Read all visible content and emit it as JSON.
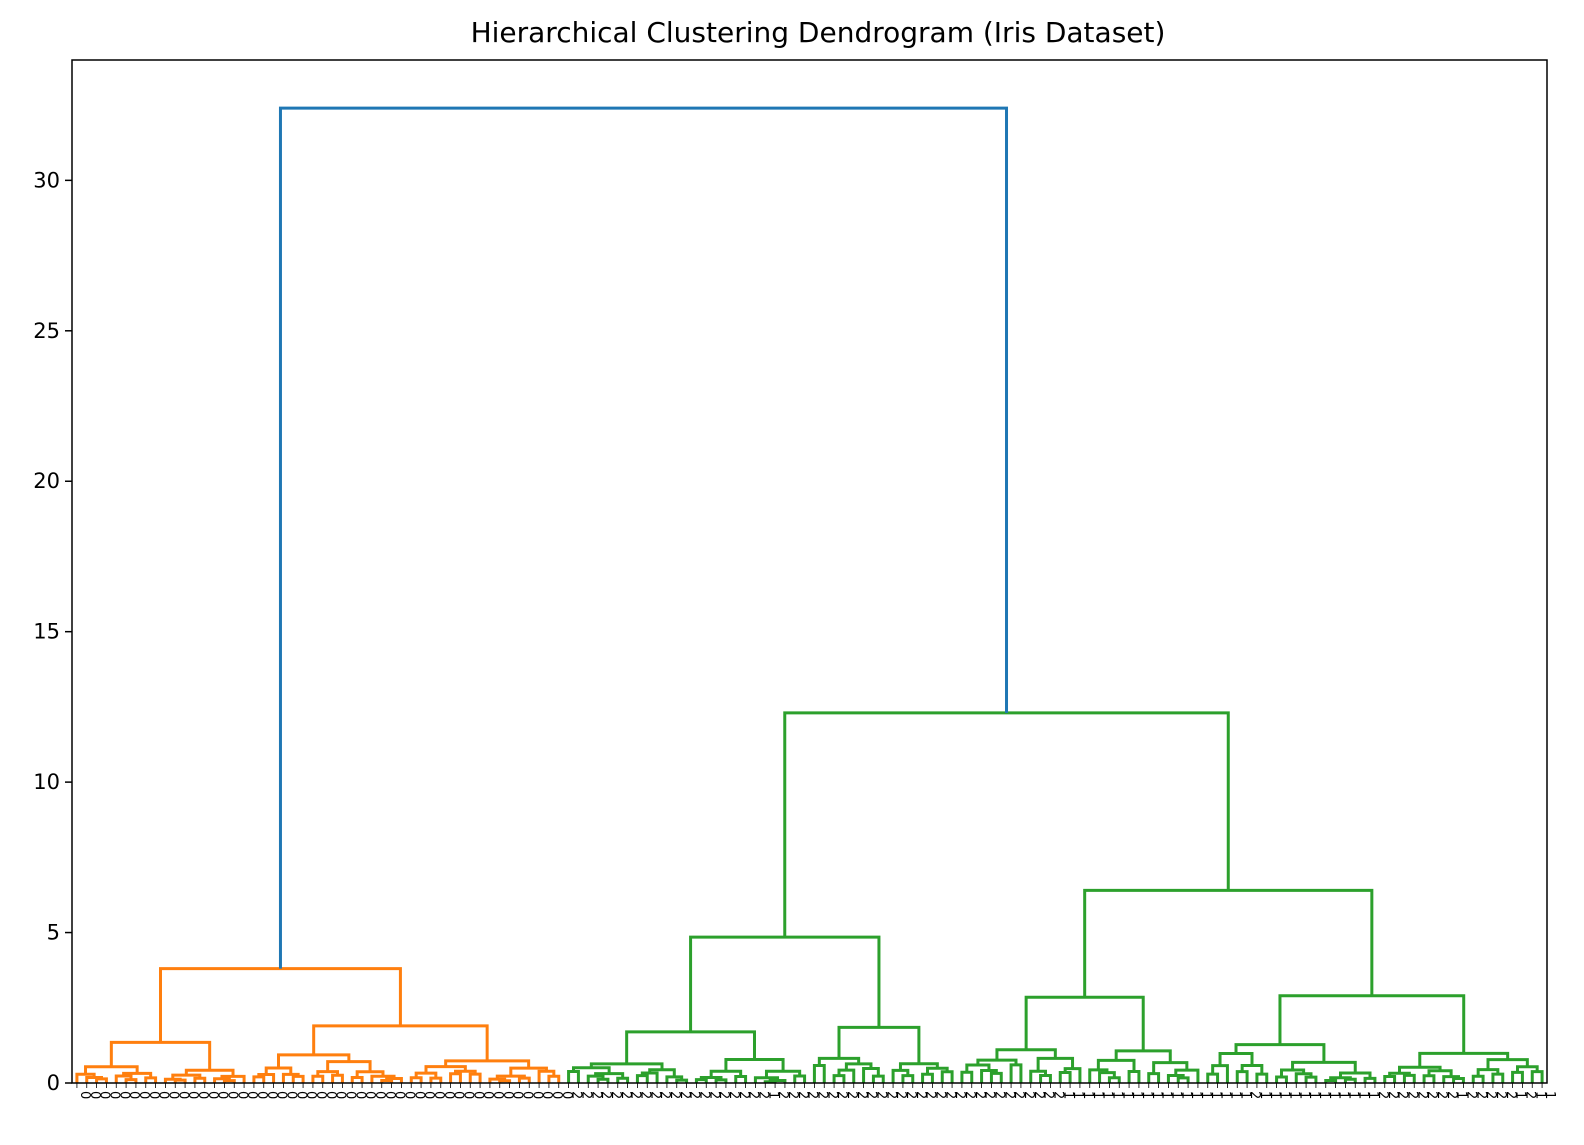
{
  "chart_data": {
    "type": "dendrogram",
    "title": "Hierarchical Clustering Dendrogram (Iris Dataset)",
    "xlabel": "",
    "ylabel": "",
    "ylim": [
      0,
      34
    ],
    "yticks": [
      0,
      5,
      10,
      15,
      20,
      25,
      30
    ],
    "leaf_count": 150,
    "leaf_labels": "000000000000000000000000000000000000000000000000002222222222222222222212222222222222222222222222222211111111111111111112111111111111222222221222221211111111111111111111111212211111",
    "colors": {
      "above_threshold": "#1f77b4",
      "cluster_1": "#ff7f0e",
      "cluster_2": "#2ca02c"
    },
    "merges": [
      {
        "name": "root",
        "height": 32.4,
        "children": [
          "setosa_cluster",
          "right_cluster"
        ],
        "color": "above"
      },
      {
        "name": "setosa_cluster",
        "height": 3.8,
        "children": [
          "setosa_a",
          "setosa_b"
        ],
        "color": "c1"
      },
      {
        "name": "setosa_a",
        "height": 1.35,
        "leaves": [
          0,
          18
        ]
      },
      {
        "name": "setosa_b",
        "height": 1.9,
        "leaves": [
          18,
          50
        ]
      },
      {
        "name": "right_cluster",
        "height": 12.3,
        "children": [
          "cluster_middle",
          "cluster_far"
        ],
        "color": "c2"
      },
      {
        "name": "cluster_middle",
        "height": 4.85,
        "children": [
          "middle_a",
          "middle_b"
        ]
      },
      {
        "name": "middle_a",
        "height": 1.7,
        "leaves": [
          50,
          75
        ]
      },
      {
        "name": "middle_b",
        "height": 1.85,
        "leaves": [
          75,
          90
        ]
      },
      {
        "name": "cluster_far",
        "height": 6.4,
        "children": [
          "far_a",
          "far_b"
        ]
      },
      {
        "name": "far_a",
        "height": 2.85,
        "leaves": [
          90,
          115
        ]
      },
      {
        "name": "far_b",
        "height": 2.9,
        "leaves": [
          115,
          150
        ]
      }
    ]
  }
}
